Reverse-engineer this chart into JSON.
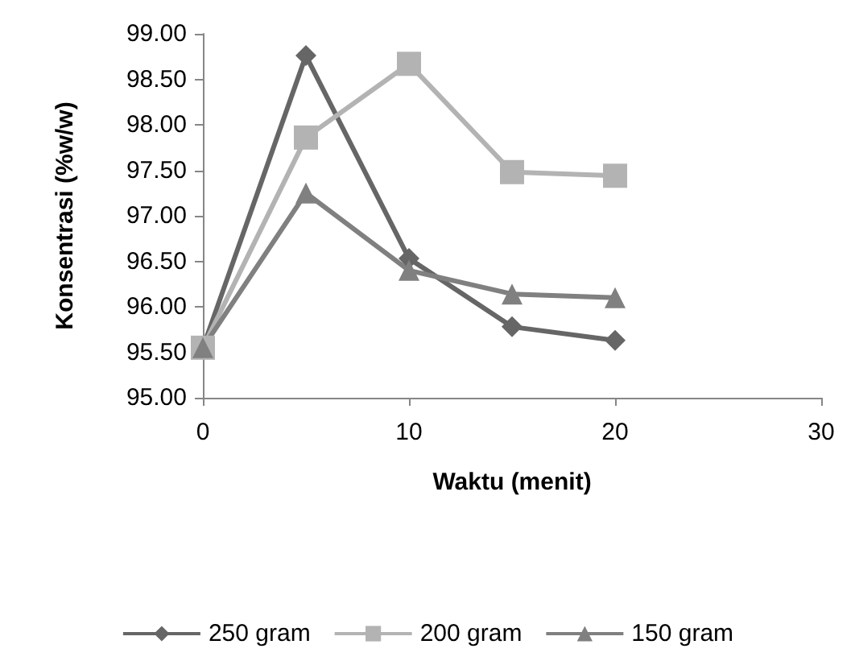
{
  "chart_data": {
    "type": "line",
    "xlabel": "Waktu (menit)",
    "ylabel": "Konsentrasi (%w/w)",
    "x": [
      0,
      5,
      10,
      15,
      20
    ],
    "series": [
      {
        "name": "250 gram",
        "color": "#666666",
        "marker": "diamond",
        "values": [
          95.55,
          98.76,
          96.53,
          95.78,
          95.63
        ]
      },
      {
        "name": "200 gram",
        "color": "#b3b3b3",
        "marker": "square",
        "values": [
          95.55,
          97.86,
          98.67,
          97.48,
          97.44
        ]
      },
      {
        "name": "150 gram",
        "color": "#808080",
        "marker": "triangle",
        "values": [
          95.55,
          97.25,
          96.4,
          96.14,
          96.1
        ]
      }
    ],
    "xlim": [
      0,
      30
    ],
    "xticks": [
      0,
      10,
      20,
      30
    ],
    "ylim": [
      95,
      99
    ],
    "yticks": [
      {
        "value": 95,
        "label": "95.00"
      },
      {
        "value": 95.5,
        "label": "95.50"
      },
      {
        "value": 96,
        "label": "96.00"
      },
      {
        "value": 96.5,
        "label": "96.50"
      },
      {
        "value": 97,
        "label": "97.00"
      },
      {
        "value": 97.5,
        "label": "97.50"
      },
      {
        "value": 98,
        "label": "98.00"
      },
      {
        "value": 98.5,
        "label": "98.50"
      },
      {
        "value": 99,
        "label": "99.00"
      }
    ],
    "grid": false,
    "legend": "bottom",
    "line_style": "solid"
  }
}
